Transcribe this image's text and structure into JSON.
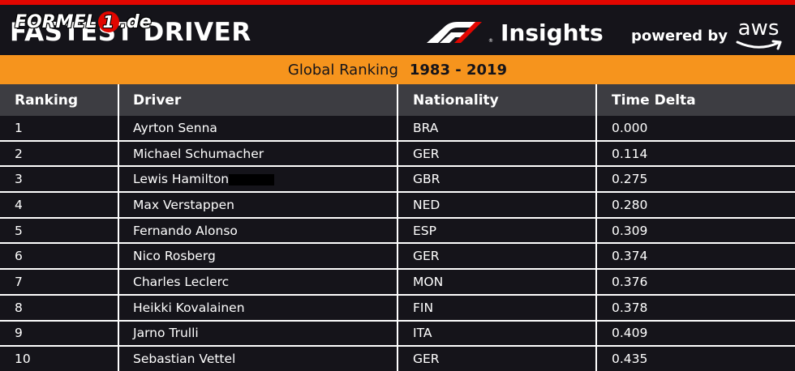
{
  "header": {
    "main_title": "FASTEST DRIVER",
    "site_logo": {
      "part1": "FORMEL",
      "badge": "1",
      "part2": ".de"
    },
    "insights": "Insights",
    "powered_by": "powered by",
    "aws": "aws"
  },
  "colors": {
    "accent_red": "#e10600",
    "orange": "#f6941d",
    "background": "#15141a",
    "header_row": "#3d3d42"
  },
  "ranking": {
    "label": "Global Ranking",
    "years": "1983 - 2019"
  },
  "table": {
    "columns": [
      "Ranking",
      "Driver",
      "Nationality",
      "Time Delta"
    ],
    "rows": [
      {
        "rank": "1",
        "driver": "Ayrton Senna",
        "nationality": "BRA",
        "delta": "0.000"
      },
      {
        "rank": "2",
        "driver": "Michael Schumacher",
        "nationality": "GER",
        "delta": "0.114"
      },
      {
        "rank": "3",
        "driver": "Lewis Hamilton",
        "nationality": "GBR",
        "delta": "0.275"
      },
      {
        "rank": "4",
        "driver": "Max Verstappen",
        "nationality": "NED",
        "delta": "0.280"
      },
      {
        "rank": "5",
        "driver": "Fernando Alonso",
        "nationality": "ESP",
        "delta": "0.309"
      },
      {
        "rank": "6",
        "driver": "Nico Rosberg",
        "nationality": "GER",
        "delta": "0.374"
      },
      {
        "rank": "7",
        "driver": "Charles Leclerc",
        "nationality": "MON",
        "delta": "0.376"
      },
      {
        "rank": "8",
        "driver": "Heikki Kovalainen",
        "nationality": "FIN",
        "delta": "0.378"
      },
      {
        "rank": "9",
        "driver": "Jarno Trulli",
        "nationality": "ITA",
        "delta": "0.409"
      },
      {
        "rank": "10",
        "driver": "Sebastian Vettel",
        "nationality": "GER",
        "delta": "0.435"
      }
    ]
  }
}
